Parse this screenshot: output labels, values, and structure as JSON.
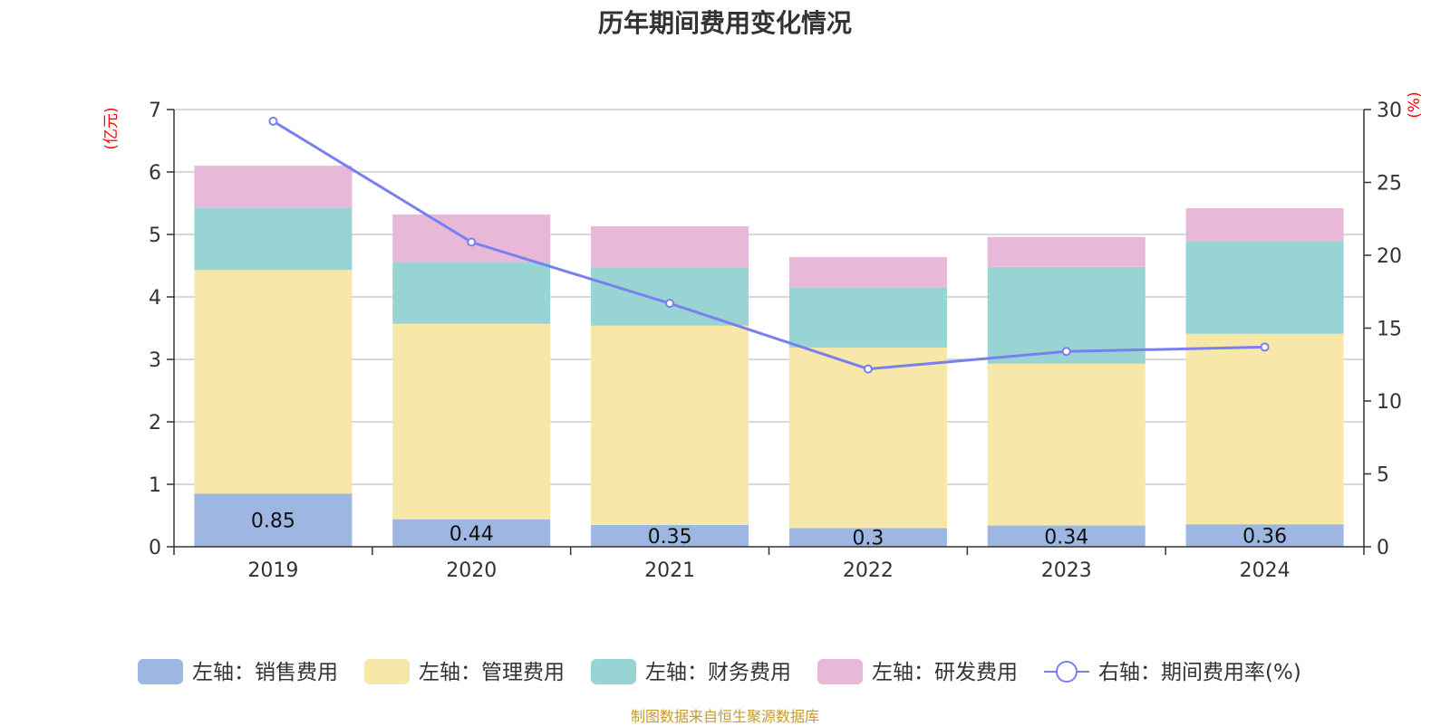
{
  "chart_data": {
    "type": "bar",
    "title": "历年期间费用变化情况",
    "categories": [
      "2019",
      "2020",
      "2021",
      "2022",
      "2023",
      "2024"
    ],
    "left_axis": {
      "unit": "(亿元)",
      "ylim": [
        0,
        7
      ],
      "ticks": [
        "0",
        "1",
        "2",
        "3",
        "4",
        "5",
        "6",
        "7"
      ]
    },
    "right_axis": {
      "unit": "(%)",
      "ylim": [
        0,
        30
      ],
      "ticks": [
        "0",
        "5",
        "10",
        "15",
        "20",
        "25",
        "30"
      ]
    },
    "series": [
      {
        "name": "左轴：销售费用",
        "values": [
          0.85,
          0.44,
          0.35,
          0.3,
          0.34,
          0.36
        ],
        "color": "#9db6e2",
        "labels": [
          "0.85",
          "0.44",
          "0.35",
          "0.3",
          "0.34",
          "0.36"
        ]
      },
      {
        "name": "左轴：管理费用",
        "values": [
          3.58,
          3.13,
          3.19,
          2.89,
          2.59,
          3.05
        ],
        "color": "#f7e7a8"
      },
      {
        "name": "左轴：财务费用",
        "values": [
          1.0,
          0.98,
          0.93,
          0.96,
          1.55,
          1.48
        ],
        "color": "#98d4d3"
      },
      {
        "name": "左轴：研发费用",
        "values": [
          0.67,
          0.77,
          0.66,
          0.49,
          0.48,
          0.53
        ],
        "color": "#e8b8d8"
      }
    ],
    "line_series": {
      "name": "右轴：期间费用率(%)",
      "values": [
        29.2,
        20.9,
        16.7,
        12.2,
        13.4,
        13.7
      ],
      "color": "#7a7ff0"
    },
    "grid": true,
    "legend_position": "bottom"
  },
  "source": "制图数据来自恒生聚源数据库"
}
